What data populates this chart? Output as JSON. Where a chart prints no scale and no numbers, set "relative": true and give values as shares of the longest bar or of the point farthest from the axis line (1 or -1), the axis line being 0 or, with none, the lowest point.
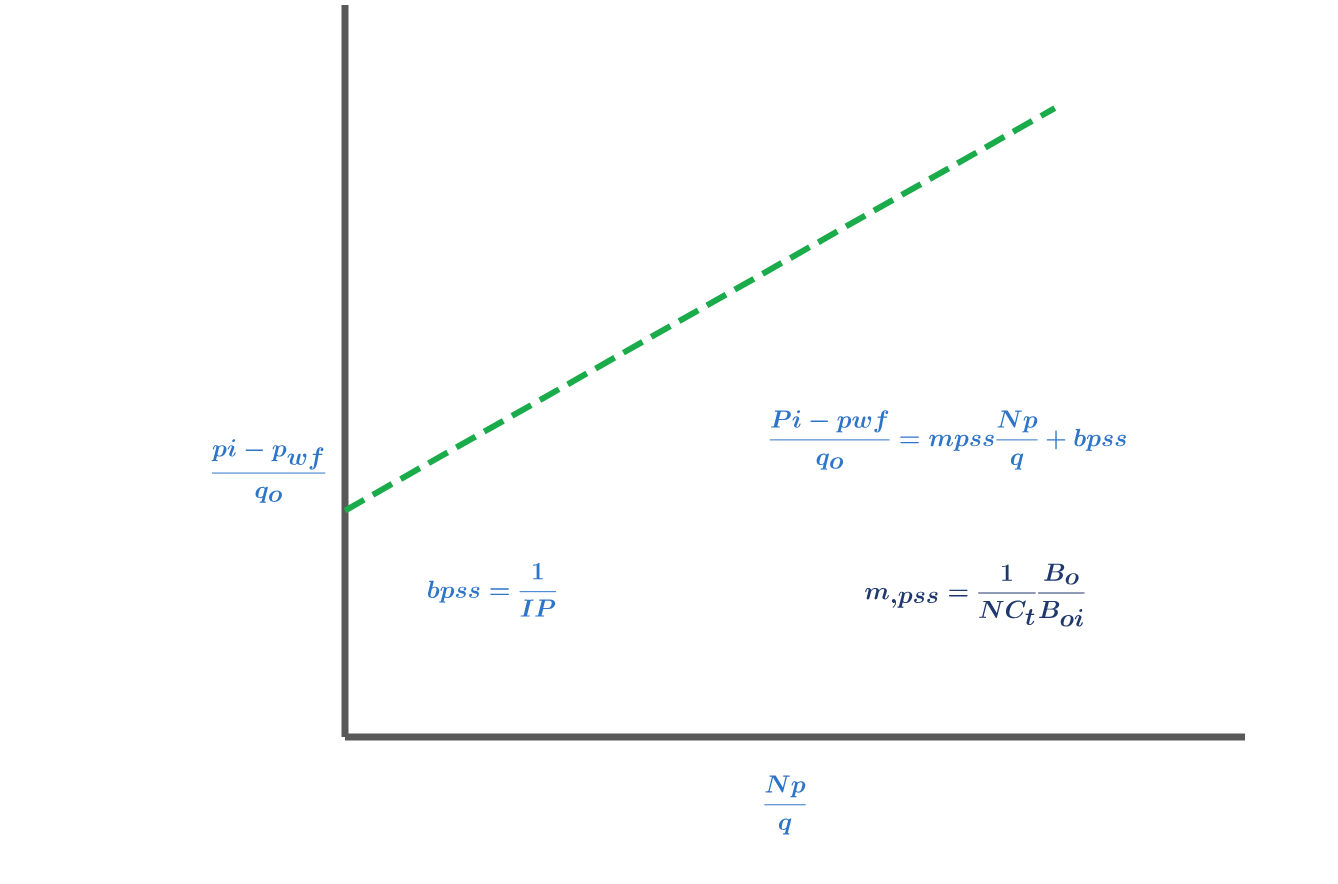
{
  "chart_data": {
    "type": "line",
    "relative": true,
    "categories": [
      null,
      null
    ],
    "series": [
      {
        "color": "#1aab4a",
        "values": [
          0.36,
          1
        ]
      }
    ],
    "line_style": "dashed",
    "marker": "none",
    "xlabel": "\\frac{Np}{q}",
    "ylabel": "\\frac{pi - p_{wf}}{q_o}",
    "annotations": [
      "\\frac{Pi - pwf}{q_o} = mpss\\frac{Np}{q} + bpss",
      "bpss = \\frac{1}{IP}",
      "m_{,pss} = \\frac{1}{NC_t}\\frac{B_o}{B_{oi}}"
    ]
  }
}
